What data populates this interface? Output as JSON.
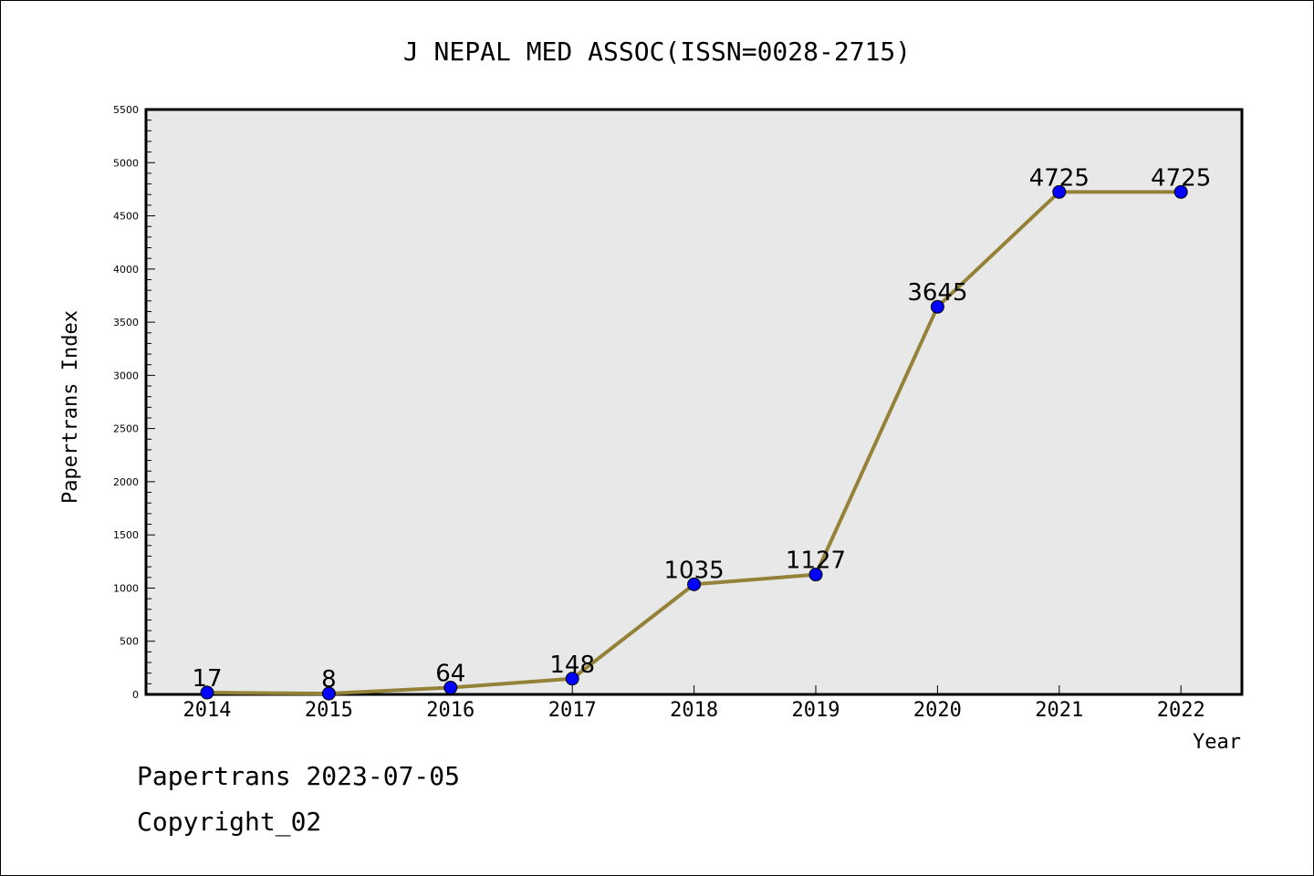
{
  "chart_data": {
    "type": "line",
    "title": "J NEPAL MED ASSOC(ISSN=0028-2715)",
    "xlabel": "Year",
    "ylabel": "Papertrans Index",
    "categories": [
      "2014",
      "2015",
      "2016",
      "2017",
      "2018",
      "2019",
      "2020",
      "2021",
      "2022"
    ],
    "values": [
      17,
      8,
      64,
      148,
      1035,
      1127,
      3645,
      4725,
      4725
    ],
    "data_labels": [
      "17",
      "8",
      "64",
      "148",
      "1035",
      "1127",
      "3645",
      "4725",
      "4725"
    ],
    "ylim": [
      0,
      5500
    ],
    "yticks": [
      "0",
      "500",
      "1000",
      "1500",
      "2000",
      "2500",
      "3000",
      "3500",
      "4000",
      "4500",
      "5000",
      "5500"
    ],
    "grid": false,
    "line_color": "#948238",
    "marker_color": "#0000ff",
    "plot_background": "#e8e8e8"
  },
  "footer": {
    "line1": "Papertrans 2023-07-05",
    "line2": "Copyright_02"
  }
}
